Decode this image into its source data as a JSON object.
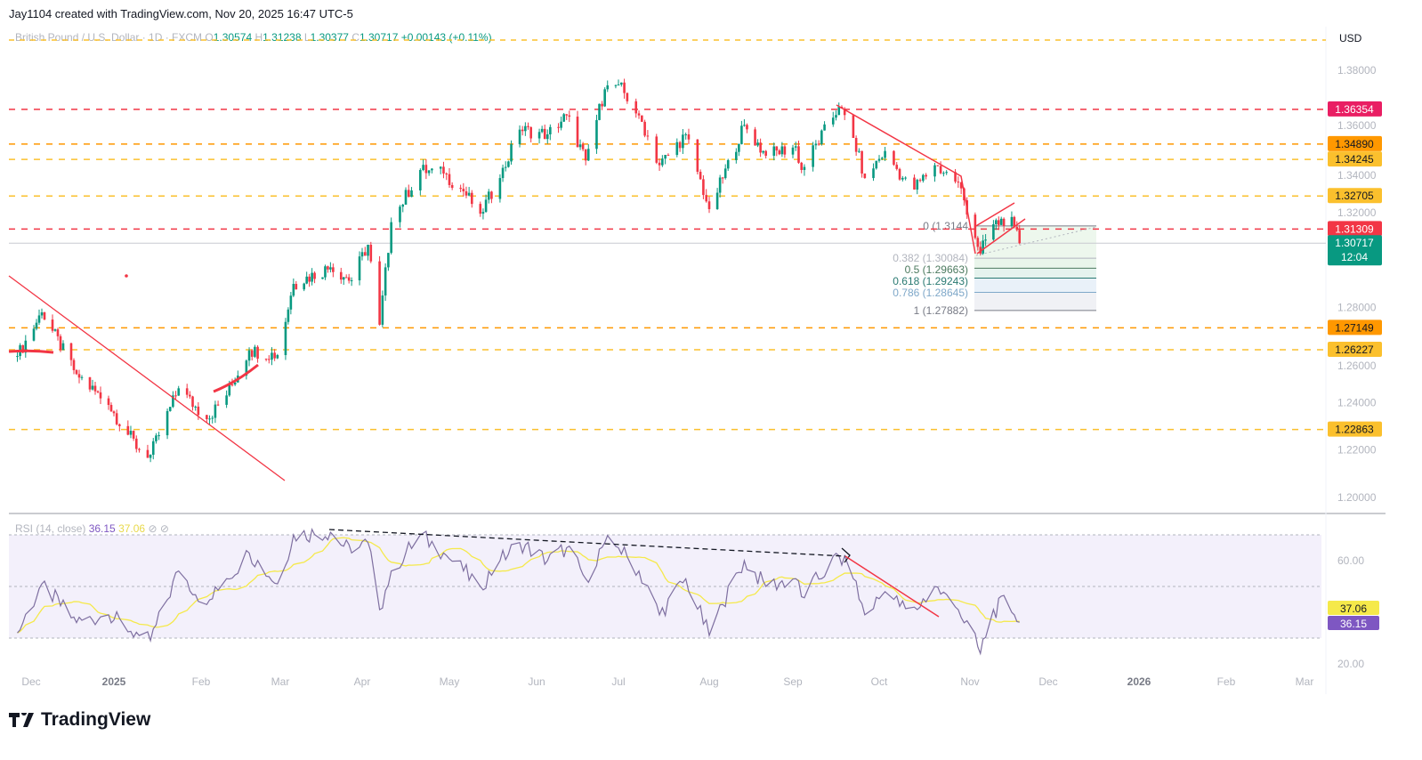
{
  "credit": "Jay1104 created with TradingView.com, Nov 20, 2025 16:47 UTC-5",
  "legend": {
    "symbol": "British Pound / U.S. Dollar · 1D · FXCM",
    "o_label": "O",
    "o": "1.30574",
    "h_label": "H",
    "h": "1.31238",
    "l_label": "L",
    "l": "1.30377",
    "c_label": "C",
    "c": "1.30717",
    "change": "+0.00143 (+0.11%)"
  },
  "currency": "USD",
  "rsi_legend": {
    "label": "RSI (14, close)",
    "rsi": "36.15",
    "ma": "37.06"
  },
  "logo": "TradingView",
  "colors": {
    "up": "#089981",
    "down": "#f23645",
    "rsi": "#7e57c2",
    "rsi_ma": "#f5e94a",
    "red_level": "#f23645",
    "orange_level": "#ff9800",
    "yellow_level": "#fbc02d"
  },
  "chart_data": [
    {
      "type": "candlestick",
      "ylim": [
        1.19,
        1.395
      ],
      "y_ticks": [
        "1.38000",
        "1.36000",
        "1.34000",
        "1.32000",
        "1.28000",
        "1.26000",
        "1.24000",
        "1.22000",
        "1.20000"
      ],
      "x_ticks": [
        "Dec",
        "2025",
        "Feb",
        "Mar",
        "Apr",
        "May",
        "Jun",
        "Jul",
        "Aug",
        "Sep",
        "Oct",
        "Nov",
        "Dec",
        "2026",
        "Feb",
        "Mar"
      ],
      "close_keypoints": [
        [
          "2024-11-26",
          1.2596
        ],
        [
          "2024-12-05",
          1.278
        ],
        [
          "2024-12-18",
          1.252
        ],
        [
          "2024-12-30",
          1.239
        ],
        [
          "2025-01-10",
          1.22
        ],
        [
          "2025-01-14",
          1.218
        ],
        [
          "2025-01-24",
          1.246
        ],
        [
          "2025-02-03",
          1.233
        ],
        [
          "2025-02-10",
          1.243
        ],
        [
          "2025-02-18",
          1.262
        ],
        [
          "2025-02-28",
          1.26
        ],
        [
          "2025-03-06",
          1.29
        ],
        [
          "2025-03-20",
          1.297
        ],
        [
          "2025-03-28",
          1.2915
        ],
        [
          "2025-04-03",
          1.3065
        ],
        [
          "2025-04-07",
          1.2728
        ],
        [
          "2025-04-11",
          1.316
        ],
        [
          "2025-04-21",
          1.338
        ],
        [
          "2025-04-29",
          1.3365
        ],
        [
          "2025-05-06",
          1.329
        ],
        [
          "2025-05-12",
          1.3196
        ],
        [
          "2025-05-19",
          1.3346
        ],
        [
          "2025-05-26",
          1.355
        ],
        [
          "2025-06-05",
          1.353
        ],
        [
          "2025-06-12",
          1.361
        ],
        [
          "2025-06-19",
          1.342
        ],
        [
          "2025-06-26",
          1.372
        ],
        [
          "2025-07-01",
          1.374
        ],
        [
          "2025-07-08",
          1.361
        ],
        [
          "2025-07-15",
          1.34
        ],
        [
          "2025-07-24",
          1.353
        ],
        [
          "2025-08-01",
          1.3215
        ],
        [
          "2025-08-06",
          1.3346
        ],
        [
          "2025-08-14",
          1.357
        ],
        [
          "2025-08-22",
          1.344
        ],
        [
          "2025-09-02",
          1.348
        ],
        [
          "2025-09-04",
          1.338
        ],
        [
          "2025-09-17",
          1.3646
        ],
        [
          "2025-09-22",
          1.3515
        ],
        [
          "2025-09-26",
          1.3346
        ],
        [
          "2025-10-03",
          1.346
        ],
        [
          "2025-10-12",
          1.329
        ],
        [
          "2025-10-20",
          1.34
        ],
        [
          "2025-10-28",
          1.3328
        ],
        [
          "2025-11-02",
          1.314
        ],
        [
          "2025-11-05",
          1.3028
        ],
        [
          "2025-11-09",
          1.314
        ],
        [
          "2025-11-15",
          1.3178
        ],
        [
          "2025-11-18",
          1.314
        ],
        [
          "2025-11-20",
          1.30717
        ]
      ],
      "levels": [
        {
          "price": 1.36354,
          "label": "1.36354",
          "kind": "red"
        },
        {
          "price": 1.3489,
          "label": "1.34890",
          "kind": "orange"
        },
        {
          "price": 1.34245,
          "label": "1.34245",
          "kind": "yellow"
        },
        {
          "price": 1.32705,
          "label": "1.32705",
          "kind": "yellow"
        },
        {
          "price": 1.31309,
          "label": "1.31309",
          "kind": "red"
        },
        {
          "price": 1.27149,
          "label": "1.27149",
          "kind": "orange"
        },
        {
          "price": 1.26227,
          "label": "1.26227",
          "kind": "yellow"
        },
        {
          "price": 1.22863,
          "label": "1.22863",
          "kind": "yellow"
        }
      ],
      "last_price": {
        "price": 1.30717,
        "label": "1.30717",
        "countdown": "12:04"
      },
      "fib": [
        {
          "level": "0 (1.3144",
          "price": 1.3144,
          "color": "#787b86"
        },
        {
          "level": "0.382 (1.30084)",
          "price": 1.30084,
          "color": "#b2b5be"
        },
        {
          "level": "0.5 (1.29663)",
          "price": 1.29663,
          "color": "#4c7a5f"
        },
        {
          "level": "0.618 (1.29243)",
          "price": 1.29243,
          "color": "#2a7a72"
        },
        {
          "level": "0.786 (1.28645)",
          "price": 1.28645,
          "color": "#7fa8c9"
        },
        {
          "level": "1 (1.27882)",
          "price": 1.27882,
          "color": "#787b86"
        }
      ]
    },
    {
      "type": "line",
      "name": "RSI (14, close)",
      "ylim": [
        15,
        78
      ],
      "y_ticks": [
        "60.00",
        "20.00"
      ],
      "bands": [
        30,
        70
      ],
      "last": {
        "rsi": "36.15",
        "ma": "37.06"
      },
      "keypoints": [
        [
          "2024-11-26",
          32
        ],
        [
          "2024-12-05",
          51
        ],
        [
          "2024-12-18",
          36
        ],
        [
          "2024-12-30",
          39
        ],
        [
          "2025-01-10",
          31
        ],
        [
          "2025-01-14",
          29
        ],
        [
          "2025-01-24",
          56
        ],
        [
          "2025-02-03",
          43
        ],
        [
          "2025-02-10",
          53
        ],
        [
          "2025-02-18",
          63
        ],
        [
          "2025-02-28",
          51
        ],
        [
          "2025-03-06",
          70
        ],
        [
          "2025-03-20",
          71
        ],
        [
          "2025-03-28",
          63
        ],
        [
          "2025-04-03",
          67
        ],
        [
          "2025-04-07",
          41
        ],
        [
          "2025-04-11",
          56
        ],
        [
          "2025-04-21",
          70
        ],
        [
          "2025-04-29",
          63
        ],
        [
          "2025-05-06",
          56
        ],
        [
          "2025-05-12",
          50
        ],
        [
          "2025-05-19",
          60
        ],
        [
          "2025-05-26",
          67
        ],
        [
          "2025-06-05",
          60
        ],
        [
          "2025-06-12",
          65
        ],
        [
          "2025-06-19",
          53
        ],
        [
          "2025-06-26",
          67
        ],
        [
          "2025-07-01",
          65
        ],
        [
          "2025-07-08",
          56
        ],
        [
          "2025-07-15",
          39
        ],
        [
          "2025-07-24",
          53
        ],
        [
          "2025-08-01",
          31
        ],
        [
          "2025-08-06",
          43
        ],
        [
          "2025-08-14",
          60
        ],
        [
          "2025-08-22",
          50
        ],
        [
          "2025-09-02",
          53
        ],
        [
          "2025-09-04",
          46
        ],
        [
          "2025-09-17",
          62
        ],
        [
          "2025-09-22",
          53
        ],
        [
          "2025-09-26",
          39
        ],
        [
          "2025-10-03",
          48
        ],
        [
          "2025-10-12",
          39
        ],
        [
          "2025-10-20",
          50
        ],
        [
          "2025-10-28",
          41
        ],
        [
          "2025-11-02",
          31
        ],
        [
          "2025-11-05",
          24
        ],
        [
          "2025-11-09",
          39
        ],
        [
          "2025-11-15",
          45
        ],
        [
          "2025-11-18",
          39
        ],
        [
          "2025-11-20",
          36.15
        ]
      ]
    }
  ]
}
